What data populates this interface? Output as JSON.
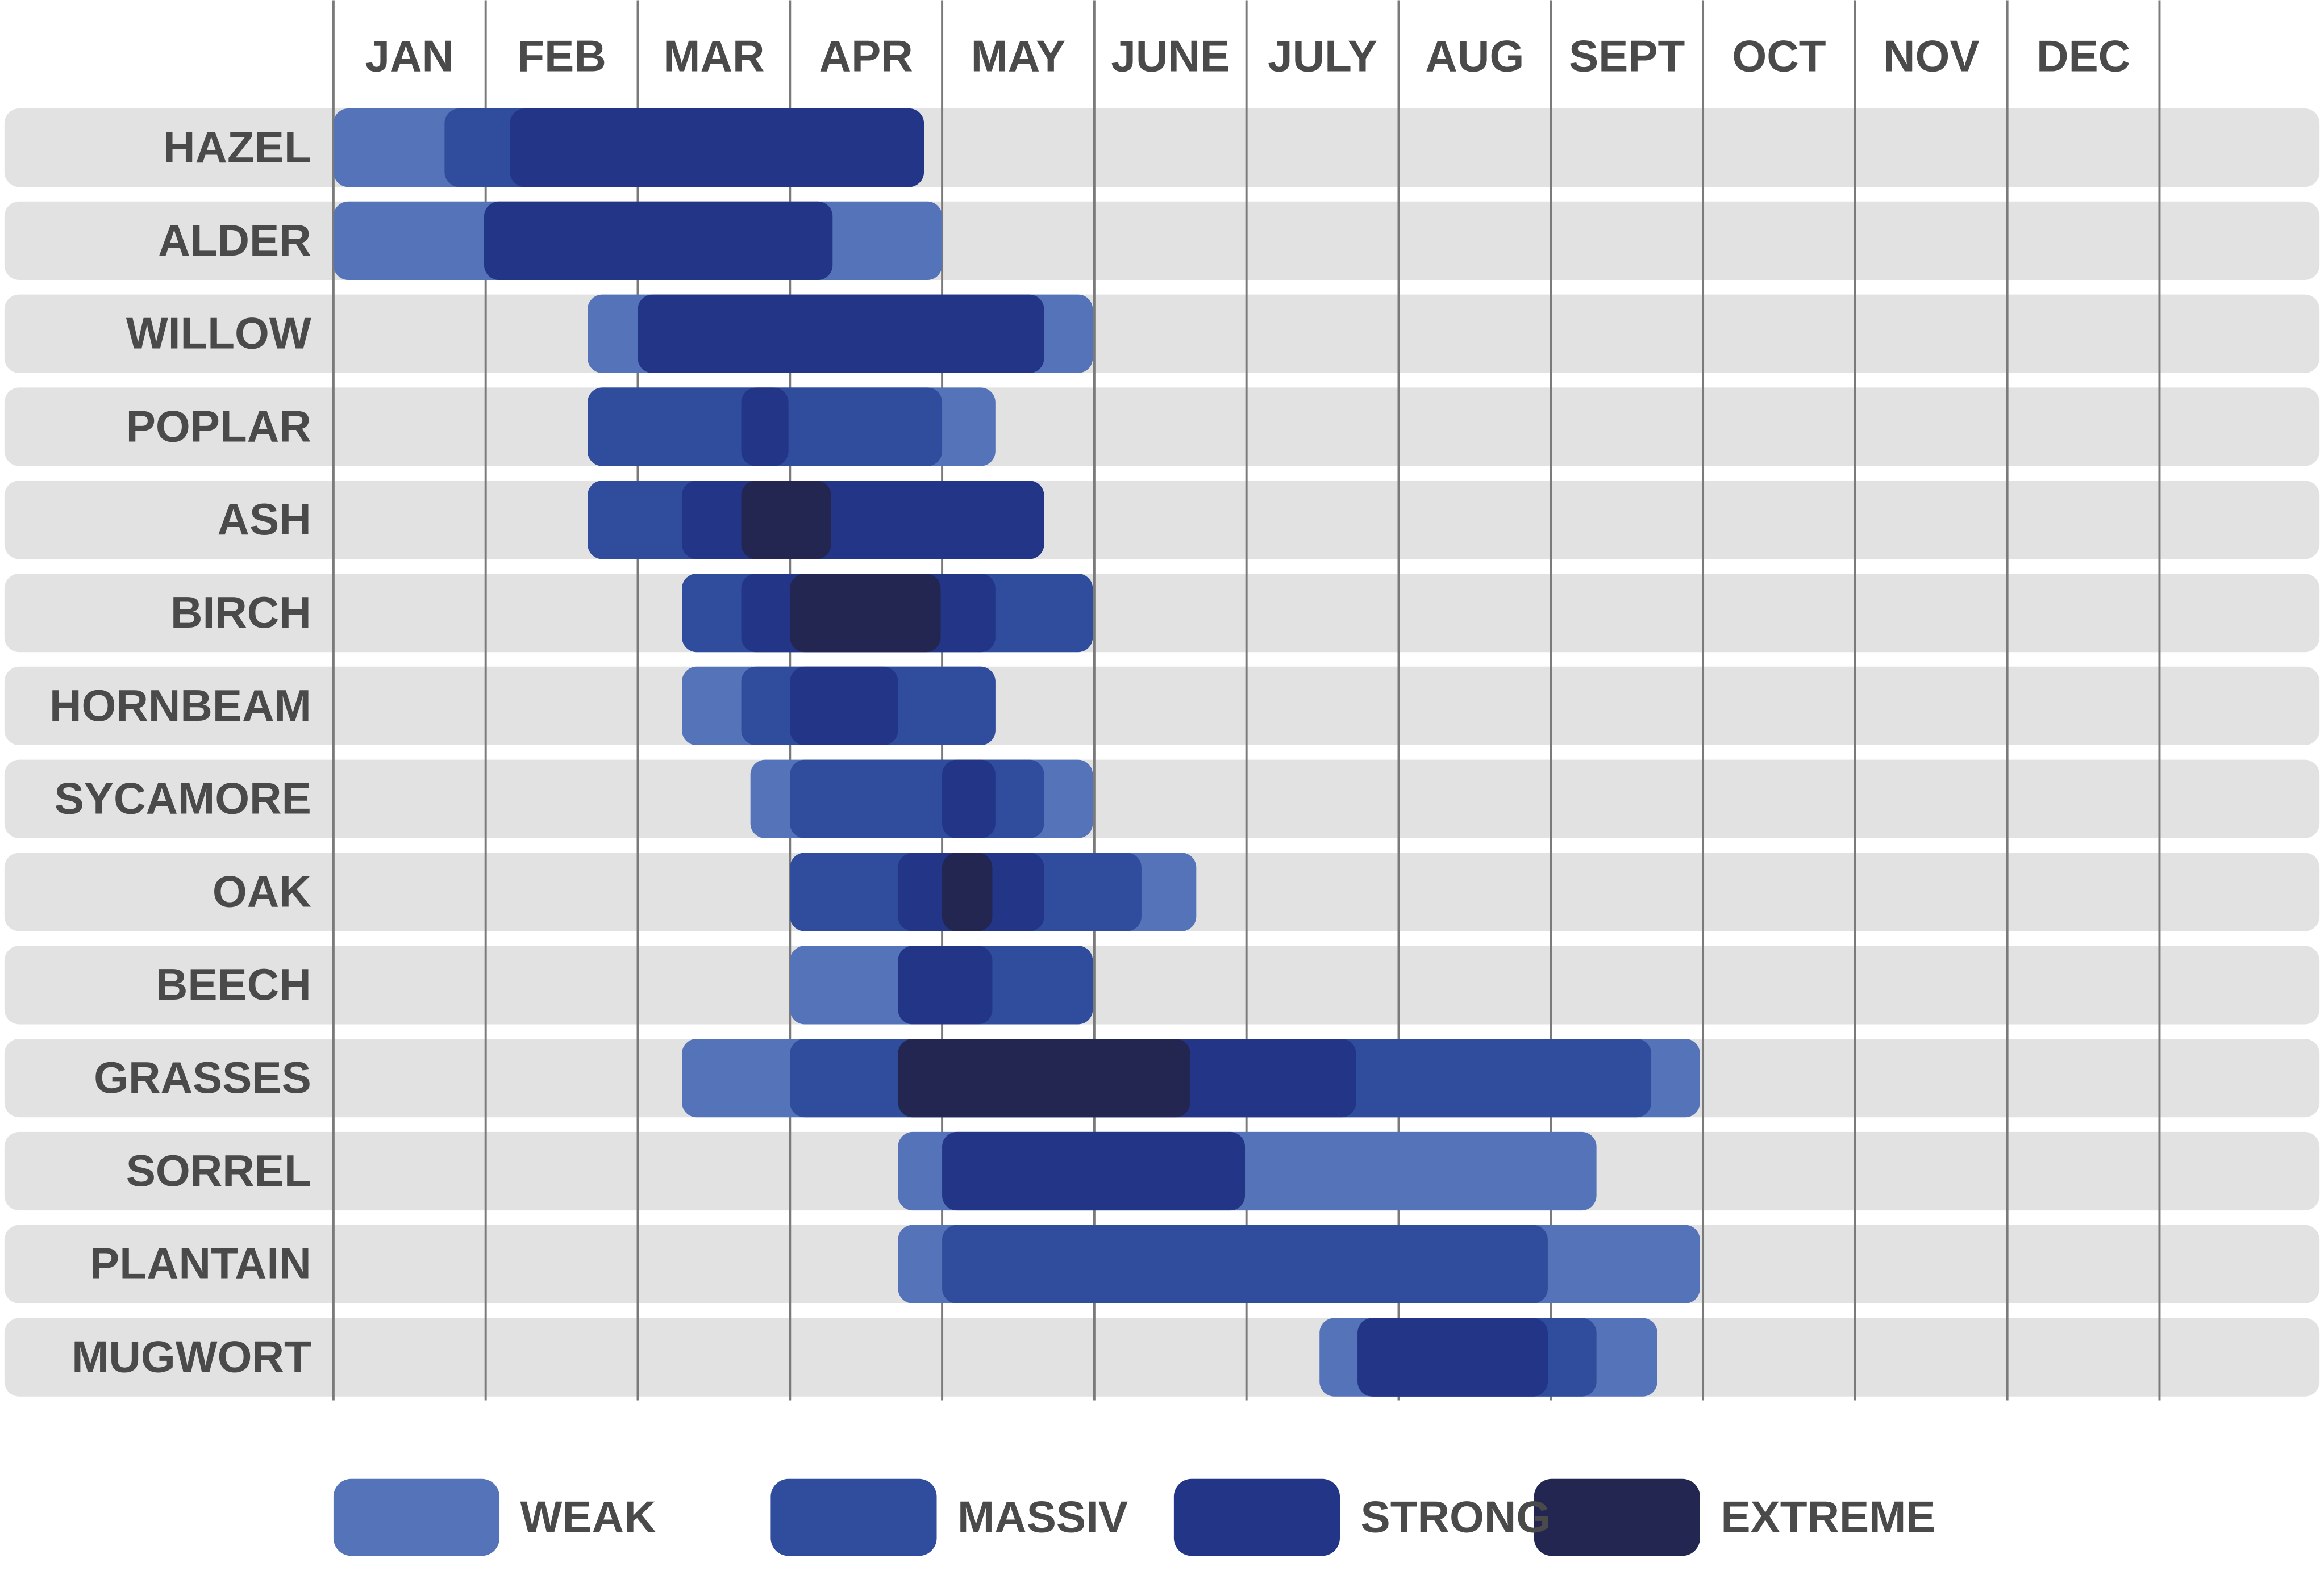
{
  "chart_data": {
    "type": "gantt",
    "categories": [
      "JAN",
      "FEB",
      "MAR",
      "APR",
      "MAY",
      "JUNE",
      "JULY",
      "AUG",
      "SEPT",
      "OCT",
      "NOV",
      "DEC"
    ],
    "xlim": [
      0,
      12
    ],
    "xticks": [
      0,
      1,
      2,
      3,
      4,
      5,
      6,
      7,
      8,
      9,
      10,
      11,
      12
    ],
    "grid": true,
    "rows": [
      "HAZEL",
      "ALDER",
      "WILLOW",
      "POPLAR",
      "ASH",
      "BIRCH",
      "HORNBEAM",
      "SYCAMORE",
      "OAK",
      "BEECH",
      "GRASSES",
      "SORREL",
      "PLANTAIN",
      "MUGWORT"
    ],
    "series": [
      {
        "name": "WEAK",
        "color": "#5573b8",
        "start": [
          0,
          0,
          1.67,
          1.67,
          null,
          null,
          2.29,
          2.74,
          3.0,
          3.0,
          2.29,
          3.71,
          3.71,
          6.48
        ],
        "end": [
          3.88,
          4.0,
          4.99,
          4.35,
          null,
          null,
          4.35,
          4.99,
          5.67,
          4.99,
          8.98,
          8.3,
          8.98,
          8.7
        ]
      },
      {
        "name": "MASSIV",
        "color": "#2f4d9c",
        "start": [
          0.73,
          null,
          null,
          1.67,
          1.67,
          2.29,
          2.68,
          3.0,
          3.0,
          3.71,
          3.0,
          null,
          4.0,
          6.73
        ],
        "end": [
          3.88,
          null,
          null,
          4.0,
          4.35,
          4.99,
          4.35,
          4.67,
          5.31,
          4.99,
          8.66,
          null,
          7.98,
          8.3
        ]
      },
      {
        "name": "STRONG",
        "color": "#223587",
        "start": [
          1.16,
          0.99,
          2.0,
          2.68,
          2.29,
          2.68,
          3.0,
          4.0,
          3.71,
          3.71,
          3.71,
          4.0,
          null,
          6.73
        ],
        "end": [
          3.88,
          3.28,
          4.67,
          2.99,
          4.67,
          4.35,
          3.71,
          4.35,
          4.67,
          4.33,
          6.72,
          5.99,
          null,
          7.98
        ]
      },
      {
        "name": "EXTREME",
        "color": "#222650",
        "start": [
          null,
          null,
          null,
          null,
          2.68,
          3.0,
          null,
          null,
          4.0,
          null,
          3.71,
          null,
          null,
          null
        ],
        "end": [
          null,
          null,
          null,
          null,
          3.27,
          3.99,
          null,
          null,
          4.33,
          null,
          5.63,
          null,
          null,
          null
        ]
      }
    ]
  }
}
